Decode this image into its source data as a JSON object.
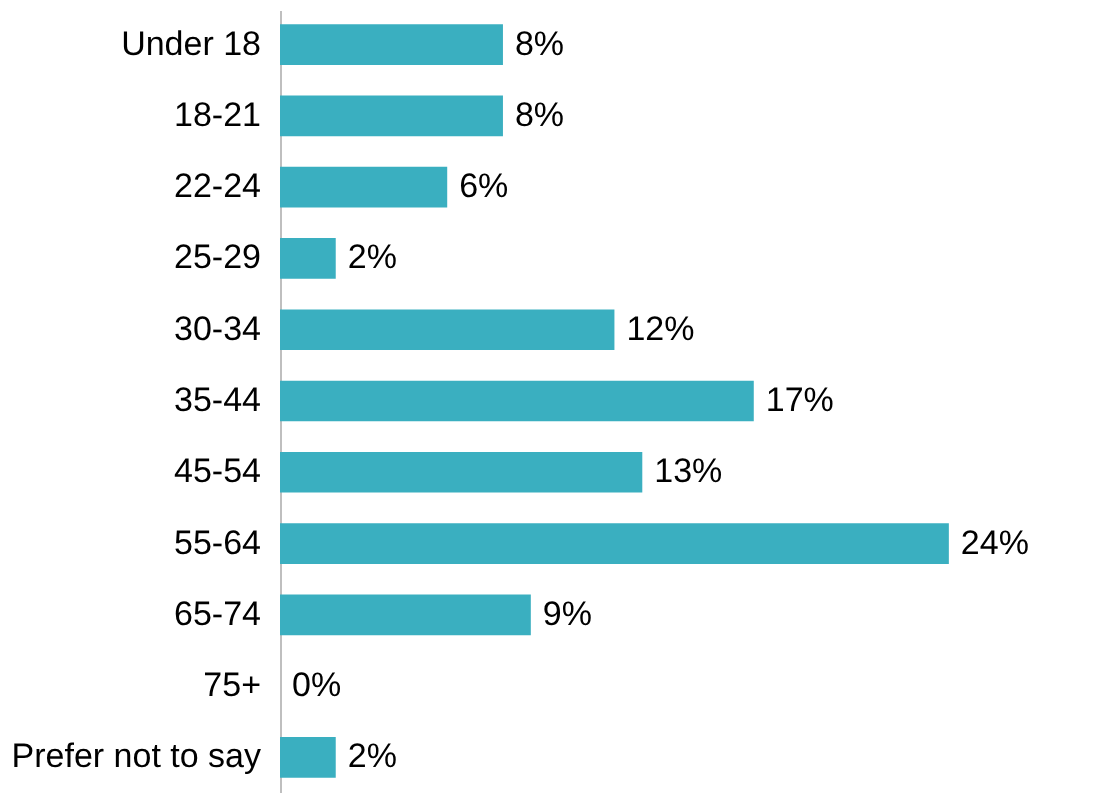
{
  "chart_data": {
    "type": "bar",
    "orientation": "horizontal",
    "categories": [
      "Under 18",
      "18-21",
      "22-24",
      "25-29",
      "30-34",
      "35-44",
      "45-54",
      "55-64",
      "65-74",
      "75+",
      "Prefer not to say"
    ],
    "values": [
      8,
      8,
      6,
      2,
      12,
      17,
      13,
      24,
      9,
      0,
      2
    ],
    "value_labels": [
      "8%",
      "8%",
      "6%",
      "2%",
      "12%",
      "17%",
      "13%",
      "24%",
      "9%",
      "0%",
      "2%"
    ],
    "color": "#3aafc0"
  }
}
